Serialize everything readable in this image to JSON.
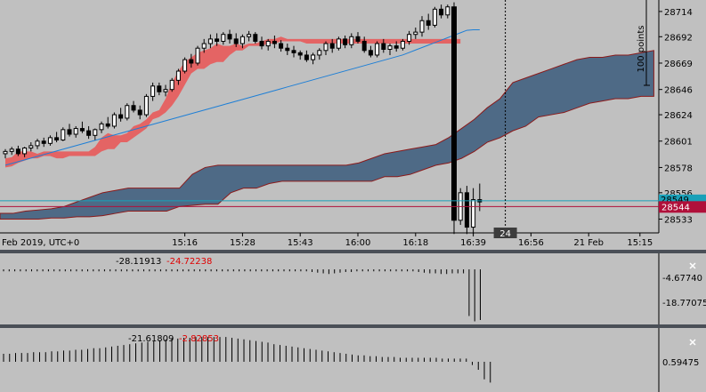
{
  "chart_data": [
    {
      "type": "candlestick",
      "panel": "main",
      "title": "",
      "x_labels": [
        {
          "label": "Feb 2019, UTC+0",
          "index": 0
        },
        {
          "label": "15:16",
          "index": 28
        },
        {
          "label": "15:28",
          "index": 37
        },
        {
          "label": "15:43",
          "index": 46
        },
        {
          "label": "16:00",
          "index": 55
        },
        {
          "label": "16:18",
          "index": 64
        },
        {
          "label": "16:39",
          "index": 73
        },
        {
          "label": "16:56",
          "index": 82
        },
        {
          "label": "21 Feb",
          "index": 91
        },
        {
          "label": "15:15",
          "index": 99
        }
      ],
      "y_ticks": [
        28714,
        28692,
        28669,
        28646,
        28624,
        28601,
        28578,
        28556,
        28533
      ],
      "ylim": [
        28521,
        28724
      ],
      "price_label": "28544",
      "price_label_back": "28549",
      "current_price": 28544,
      "cyan_line": 28549,
      "crosshair_label": "24",
      "ruler_label": "100 points",
      "colors": {
        "kumo_bear": "#e85a5a",
        "kumo_bull": "#4e6a86",
        "kumo_edge": "#8b1a1a",
        "kijun": "#1e7fd6",
        "chikou": "#8a2bd6",
        "candle": "#000000",
        "price_badge": "#b0103a",
        "cyan": "#1aa0b8"
      },
      "candles": [
        [
          28590,
          28594,
          28586,
          28592
        ],
        [
          28592,
          28596,
          28589,
          28594
        ],
        [
          28594,
          28597,
          28588,
          28590
        ],
        [
          28590,
          28596,
          28587,
          28595
        ],
        [
          28595,
          28600,
          28592,
          28597
        ],
        [
          28597,
          28603,
          28594,
          28601
        ],
        [
          28601,
          28604,
          28596,
          28599
        ],
        [
          28599,
          28606,
          28597,
          28604
        ],
        [
          28604,
          28609,
          28600,
          28602
        ],
        [
          28602,
          28613,
          28601,
          28611
        ],
        [
          28611,
          28616,
          28605,
          28607
        ],
        [
          28607,
          28614,
          28604,
          28612
        ],
        [
          28612,
          28618,
          28608,
          28610
        ],
        [
          28610,
          28614,
          28603,
          28606
        ],
        [
          28606,
          28612,
          28602,
          28611
        ],
        [
          28611,
          28618,
          28608,
          28616
        ],
        [
          28616,
          28622,
          28612,
          28614
        ],
        [
          28614,
          28626,
          28612,
          28624
        ],
        [
          28624,
          28630,
          28618,
          28621
        ],
        [
          28621,
          28634,
          28619,
          28632
        ],
        [
          28632,
          28636,
          28626,
          28628
        ],
        [
          28628,
          28632,
          28620,
          28624
        ],
        [
          28624,
          28642,
          28622,
          28640
        ],
        [
          28640,
          28652,
          28636,
          28649
        ],
        [
          28649,
          28652,
          28641,
          28644
        ],
        [
          28644,
          28650,
          28640,
          28646
        ],
        [
          28646,
          28656,
          28644,
          28654
        ],
        [
          28654,
          28664,
          28650,
          28662
        ],
        [
          28662,
          28674,
          28660,
          28672
        ],
        [
          28672,
          28677,
          28665,
          28669
        ],
        [
          28669,
          28684,
          28667,
          28682
        ],
        [
          28682,
          28690,
          28678,
          28686
        ],
        [
          28686,
          28694,
          28682,
          28690
        ],
        [
          28690,
          28695,
          28684,
          28688
        ],
        [
          28688,
          28696,
          28685,
          28694
        ],
        [
          28694,
          28698,
          28686,
          28690
        ],
        [
          28690,
          28695,
          28683,
          28686
        ],
        [
          28686,
          28694,
          28682,
          28692
        ],
        [
          28692,
          28697,
          28688,
          28694
        ],
        [
          28694,
          28696,
          28686,
          28688
        ],
        [
          28688,
          28692,
          28681,
          28684
        ],
        [
          28684,
          28690,
          28680,
          28688
        ],
        [
          28688,
          28693,
          28682,
          28686
        ],
        [
          28686,
          28689,
          28679,
          28682
        ],
        [
          28682,
          28686,
          28676,
          28680
        ],
        [
          28680,
          28684,
          28674,
          28678
        ],
        [
          28678,
          28680,
          28672,
          28676
        ],
        [
          28676,
          28680,
          28670,
          28672
        ],
        [
          28672,
          28678,
          28668,
          28676
        ],
        [
          28676,
          28682,
          28672,
          28680
        ],
        [
          28680,
          28688,
          28676,
          28686
        ],
        [
          28686,
          28690,
          28678,
          28682
        ],
        [
          28682,
          28692,
          28680,
          28690
        ],
        [
          28690,
          28693,
          28682,
          28685
        ],
        [
          28685,
          28695,
          28682,
          28692
        ],
        [
          28692,
          28696,
          28686,
          28688
        ],
        [
          28688,
          28692,
          28678,
          28680
        ],
        [
          28680,
          28684,
          28674,
          28676
        ],
        [
          28676,
          28688,
          28674,
          28686
        ],
        [
          28686,
          28690,
          28678,
          28681
        ],
        [
          28681,
          28686,
          28676,
          28684
        ],
        [
          28684,
          28688,
          28679,
          28682
        ],
        [
          28682,
          28690,
          28680,
          28688
        ],
        [
          28688,
          28697,
          28685,
          28694
        ],
        [
          28694,
          28700,
          28690,
          28696
        ],
        [
          28696,
          28710,
          28692,
          28706
        ],
        [
          28706,
          28712,
          28698,
          28702
        ],
        [
          28702,
          28718,
          28700,
          28716
        ],
        [
          28716,
          28720,
          28708,
          28711
        ],
        [
          28711,
          28720,
          28708,
          28718
        ],
        [
          28718,
          28722,
          28520,
          28532
        ],
        [
          28532,
          28560,
          28528,
          28556
        ],
        [
          28556,
          28562,
          28520,
          28526
        ],
        [
          28526,
          28560,
          28520,
          28550
        ],
        [
          28550,
          28564,
          28540,
          28548
        ]
      ],
      "kumo": [
        [
          28578,
          28586
        ],
        [
          28579,
          28587
        ],
        [
          28582,
          28592
        ],
        [
          28584,
          28592
        ],
        [
          28586,
          28592
        ],
        [
          28586,
          28590
        ],
        [
          28588,
          28592
        ],
        [
          28588,
          28592
        ],
        [
          28586,
          28592
        ],
        [
          28586,
          28592
        ],
        [
          28588,
          28592
        ],
        [
          28588,
          28592
        ],
        [
          28588,
          28592
        ],
        [
          28588,
          28592
        ],
        [
          28588,
          28596
        ],
        [
          28592,
          28604
        ],
        [
          28594,
          28608
        ],
        [
          28594,
          28606
        ],
        [
          28600,
          28606
        ],
        [
          28600,
          28608
        ],
        [
          28604,
          28614
        ],
        [
          28608,
          28616
        ],
        [
          28612,
          28620
        ],
        [
          28620,
          28626
        ],
        [
          28622,
          28628
        ],
        [
          28626,
          28638
        ],
        [
          28632,
          28652
        ],
        [
          28640,
          28662
        ],
        [
          28650,
          28670
        ],
        [
          28660,
          28674
        ],
        [
          28664,
          28678
        ],
        [
          28664,
          28680
        ],
        [
          28668,
          28682
        ],
        [
          28670,
          28686
        ],
        [
          28670,
          28684
        ],
        [
          28676,
          28684
        ],
        [
          28680,
          28686
        ],
        [
          28680,
          28684
        ],
        [
          28684,
          28686
        ],
        [
          28684,
          28686
        ],
        [
          28684,
          28688
        ],
        [
          28686,
          28690
        ],
        [
          28686,
          28690
        ],
        [
          28688,
          28692
        ],
        [
          28688,
          28690
        ],
        [
          28688,
          28690
        ],
        [
          28688,
          28690
        ],
        [
          28686,
          28690
        ],
        [
          28686,
          28690
        ],
        [
          28686,
          28690
        ],
        [
          28686,
          28690
        ],
        [
          28686,
          28690
        ],
        [
          28686,
          28690
        ],
        [
          28686,
          28690
        ],
        [
          28686,
          28690
        ],
        [
          28686,
          28690
        ],
        [
          28686,
          28690
        ],
        [
          28686,
          28690
        ],
        [
          28686,
          28690
        ],
        [
          28686,
          28690
        ],
        [
          28686,
          28690
        ],
        [
          28686,
          28690
        ],
        [
          28686,
          28690
        ],
        [
          28686,
          28690
        ],
        [
          28686,
          28690
        ],
        [
          28686,
          28690
        ],
        [
          28686,
          28690
        ],
        [
          28686,
          28690
        ],
        [
          28686,
          28690
        ],
        [
          28686,
          28690
        ],
        [
          28686,
          28690
        ],
        [
          28686,
          28690
        ]
      ],
      "cloud_dark": [
        [
          28533,
          28538
        ],
        [
          28533,
          28538
        ],
        [
          28533,
          28540
        ],
        [
          28533,
          28541
        ],
        [
          28534,
          28542
        ],
        [
          28534,
          28544
        ],
        [
          28535,
          28548
        ],
        [
          28535,
          28552
        ],
        [
          28536,
          28556
        ],
        [
          28538,
          28558
        ],
        [
          28540,
          28560
        ],
        [
          28540,
          28560
        ],
        [
          28540,
          28560
        ],
        [
          28540,
          28560
        ],
        [
          28544,
          28560
        ],
        [
          28545,
          28572
        ],
        [
          28546,
          28578
        ],
        [
          28546,
          28580
        ],
        [
          28556,
          28580
        ],
        [
          28560,
          28580
        ],
        [
          28560,
          28580
        ],
        [
          28564,
          28580
        ],
        [
          28566,
          28580
        ],
        [
          28566,
          28580
        ],
        [
          28566,
          28580
        ],
        [
          28566,
          28580
        ],
        [
          28566,
          28580
        ],
        [
          28566,
          28580
        ],
        [
          28566,
          28582
        ],
        [
          28566,
          28586
        ],
        [
          28570,
          28590
        ],
        [
          28570,
          28592
        ],
        [
          28572,
          28594
        ],
        [
          28576,
          28596
        ],
        [
          28580,
          28598
        ],
        [
          28582,
          28604
        ],
        [
          28586,
          28612
        ],
        [
          28592,
          28620
        ],
        [
          28600,
          28630
        ],
        [
          28604,
          28638
        ],
        [
          28610,
          28652
        ],
        [
          28614,
          28656
        ],
        [
          28622,
          28660
        ],
        [
          28624,
          28664
        ],
        [
          28626,
          28668
        ],
        [
          28630,
          28672
        ],
        [
          28634,
          28674
        ],
        [
          28636,
          28674
        ],
        [
          28638,
          28676
        ],
        [
          28638,
          28676
        ],
        [
          28640,
          28678
        ],
        [
          28640,
          28680
        ]
      ]
    },
    {
      "type": "histogram",
      "panel": "indicator-1",
      "values_label_a": "-28.11913",
      "values_label_b": "-24.72238",
      "y_ticks": [
        "-4.67740",
        "-18.77075"
      ],
      "bars": [
        -3,
        -3,
        -3,
        -3,
        -3,
        -3,
        -3,
        -3,
        -3,
        -3,
        -3,
        -3,
        -3,
        -3,
        -3,
        -3,
        -3,
        -3,
        -3,
        -3,
        -3,
        -3,
        -3,
        -3,
        -3,
        -3,
        -3,
        -3,
        -3,
        -3,
        -3,
        -3,
        -3,
        -3,
        -3,
        -3,
        -3,
        -3,
        -3,
        -3,
        -3,
        -3,
        -3,
        -3,
        -3,
        -3,
        -3,
        -3,
        -3,
        -3,
        -3,
        -3,
        -3,
        -3,
        -3,
        -4,
        -5,
        -6,
        -7,
        -6,
        -5,
        -4,
        -4,
        -3,
        -3,
        -3,
        -3,
        -3,
        -3,
        -3,
        -3,
        -3,
        -3,
        -3,
        -4,
        -5,
        -6,
        -6,
        -7,
        -7,
        -6,
        -6,
        -6,
        -70,
        -78,
        -76
      ]
    },
    {
      "type": "histogram",
      "panel": "indicator-2",
      "values_label_a": "-21.61809",
      "values_label_b": "-2.82853",
      "y_ticks": [
        "0.59475"
      ],
      "bars": [
        10,
        10,
        11,
        11,
        11,
        12,
        12,
        12,
        13,
        13,
        14,
        14,
        15,
        15,
        16,
        17,
        17,
        18,
        19,
        20,
        21,
        22,
        23,
        24,
        25,
        26,
        27,
        28,
        29,
        29,
        30,
        30,
        31,
        31,
        31,
        31,
        31,
        31,
        30,
        29,
        28,
        27,
        26,
        25,
        24,
        22,
        21,
        20,
        19,
        18,
        17,
        16,
        15,
        14,
        13,
        12,
        11,
        10,
        9,
        8,
        8,
        7,
        7,
        6,
        6,
        6,
        5,
        5,
        5,
        5,
        5,
        5,
        5,
        4,
        4,
        4,
        4,
        4,
        -4,
        -10,
        -22,
        -26
      ]
    }
  ]
}
